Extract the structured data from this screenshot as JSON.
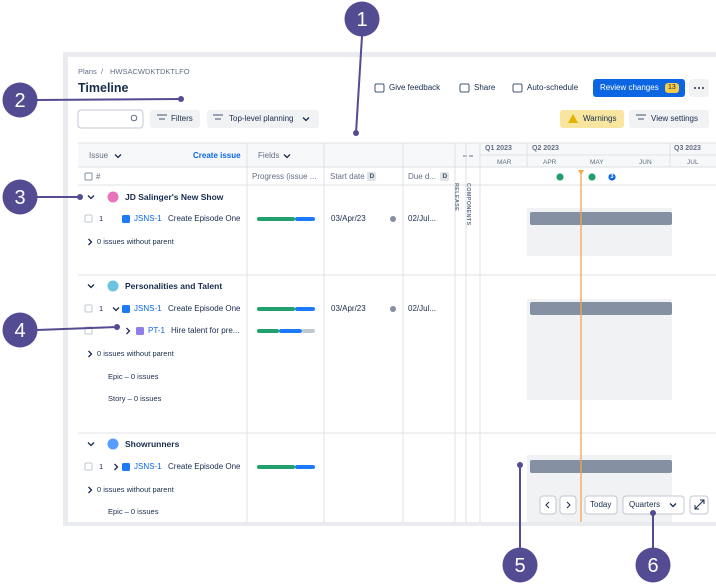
{
  "callouts": [
    "1",
    "2",
    "3",
    "4",
    "5",
    "6"
  ],
  "breadcrumb": {
    "root": "Plans",
    "separator": "/",
    "project": "HWSACWDKTDKTLFO"
  },
  "header": {
    "title": "Timeline",
    "actions": [
      "Give feedback",
      "Share",
      "Auto-schedule"
    ],
    "review": {
      "label": "Review changes",
      "count": 13
    }
  },
  "toolbar": {
    "filters": "Filters",
    "planning": "Top-level planning",
    "warnings": "Warnings",
    "view_settings": "View settings"
  },
  "columns": {
    "issue": "Issue",
    "create": "Create issue",
    "fields": "Fields",
    "number": "#",
    "progress": "Progress (issue ...",
    "start": "Start date",
    "due": "Due d...",
    "date_badge": "D",
    "release": "RELEASE",
    "components": "COMPONENTS"
  },
  "timeline": {
    "quarters": [
      "Q1 2023",
      "Q2 2023",
      "Q3 2023"
    ],
    "months": [
      "MAR",
      "APR",
      "MAY",
      "JUN",
      "JUL"
    ],
    "marker_count": 3
  },
  "groups": [
    {
      "name": "JD Salinger's New Show",
      "issues": [
        {
          "num": 1,
          "key": "JSNS-1",
          "summary": "Create Episode One",
          "start": "03/Apr/23",
          "due": "02/Jul..."
        }
      ],
      "notes": [
        "0 issues without parent"
      ]
    },
    {
      "name": "Personalities and Talent",
      "issues": [
        {
          "num": 1,
          "key": "JSNS-1",
          "summary": "Create Episode One",
          "start": "03/Apr/23",
          "due": "02/Jul..."
        },
        {
          "key": "PT-1",
          "summary": "Hire talent for pre..."
        }
      ],
      "notes": [
        "0 issues without parent",
        "Epic – 0 issues",
        "Story – 0 issues"
      ]
    },
    {
      "name": "Showrunners",
      "issues": [
        {
          "num": 1,
          "key": "JSNS-1",
          "summary": "Create Episode One"
        }
      ],
      "notes": [
        "0 issues without parent",
        "Epic – 0 issues"
      ]
    }
  ],
  "controls": {
    "today": "Today",
    "scale": "Quarters"
  }
}
